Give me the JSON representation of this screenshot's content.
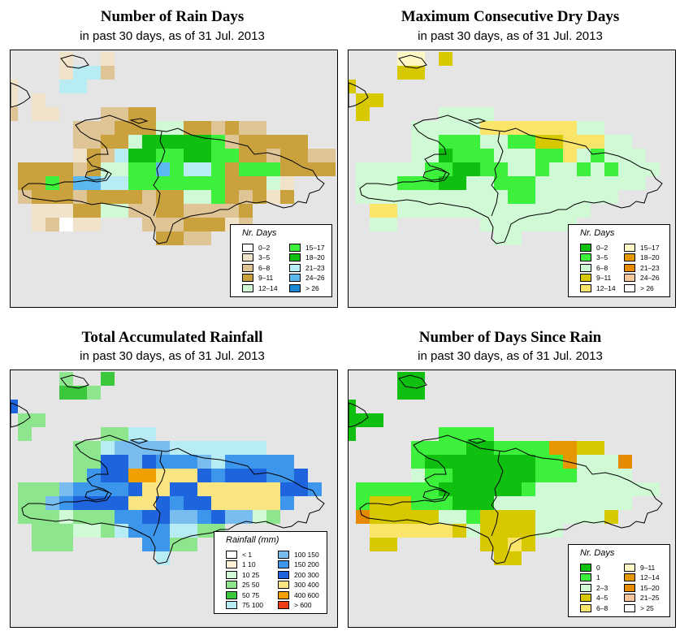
{
  "panels": [
    {
      "id": "rain-days",
      "title": "Number of Rain Days",
      "subtitle": "in past 30 days, as of  31 Jul. 2013",
      "legend": {
        "title": "Nr. Days",
        "columns": 2,
        "items": [
          {
            "label": "0–2",
            "color": "#ffffff"
          },
          {
            "label": "3–5",
            "color": "#f1e3c9"
          },
          {
            "label": "6–8",
            "color": "#dfc596"
          },
          {
            "label": "9–11",
            "color": "#c9a23e"
          },
          {
            "label": "12–14",
            "color": "#cffad5"
          },
          {
            "label": "15–17",
            "color": "#3cf03c"
          },
          {
            "label": "18–20",
            "color": "#10c010"
          },
          {
            "label": "21–23",
            "color": "#b8ecf5"
          },
          {
            "label": "24–26",
            "color": "#5cb8ee"
          },
          {
            "label": "> 26",
            "color": "#1a86d4"
          }
        ]
      }
    },
    {
      "id": "dry-days",
      "title": "Maximum Consecutive Dry Days",
      "subtitle": "in past 30 days, as of  31 Jul. 2013",
      "legend": {
        "title": "Nr. Days",
        "columns": 2,
        "items": [
          {
            "label": "0–2",
            "color": "#10c010"
          },
          {
            "label": "3–5",
            "color": "#3cf03c"
          },
          {
            "label": "6–8",
            "color": "#cffad5"
          },
          {
            "label": "9–11",
            "color": "#d8c800"
          },
          {
            "label": "12–14",
            "color": "#fae56a"
          },
          {
            "label": "15–17",
            "color": "#fff8c4"
          },
          {
            "label": "18–20",
            "color": "#e69600"
          },
          {
            "label": "21–23",
            "color": "#e68a00"
          },
          {
            "label": "24–26",
            "color": "#f7c79b"
          },
          {
            "label": "> 26",
            "color": "#ffffff"
          }
        ]
      }
    },
    {
      "id": "rainfall",
      "title": "Total Accumulated Rainfall",
      "subtitle": "in past 30 days, as of  31 Jul. 2013",
      "legend": {
        "title": "Rainfall (mm)",
        "columns": 2,
        "items": [
          {
            "label": "< 1",
            "color": "#ffffff"
          },
          {
            "label": "1   10",
            "color": "#fff1d5"
          },
          {
            "label": "10   25",
            "color": "#cffad5"
          },
          {
            "label": "25   50",
            "color": "#8de68d"
          },
          {
            "label": "50   75",
            "color": "#3cc83c"
          },
          {
            "label": "75   100",
            "color": "#b8ecf5"
          },
          {
            "label": "100   150",
            "color": "#78bcf0"
          },
          {
            "label": "150   200",
            "color": "#3c96ec"
          },
          {
            "label": "200   300",
            "color": "#1e64dc"
          },
          {
            "label": "300   400",
            "color": "#fae582"
          },
          {
            "label": "400   600",
            "color": "#f0a000"
          },
          {
            "label": "> 600",
            "color": "#f03c14"
          }
        ]
      }
    },
    {
      "id": "since-rain",
      "title": "Number of Days Since Rain",
      "subtitle": "in past 30 days, as of  31 Jul. 2013",
      "legend": {
        "title": "Nr. Days",
        "columns": 2,
        "items": [
          {
            "label": "0",
            "color": "#10c010"
          },
          {
            "label": "1",
            "color": "#3cf03c"
          },
          {
            "label": "2–3",
            "color": "#cffad5"
          },
          {
            "label": "4–5",
            "color": "#d8c800"
          },
          {
            "label": "6–8",
            "color": "#fae56a"
          },
          {
            "label": "9–11",
            "color": "#fff8c4"
          },
          {
            "label": "12–14",
            "color": "#e69600"
          },
          {
            "label": "15–20",
            "color": "#e68a00"
          },
          {
            "label": "21–25",
            "color": "#f7c79b"
          },
          {
            "label": "> 25",
            "color": "#ffffff"
          }
        ]
      }
    }
  ]
}
